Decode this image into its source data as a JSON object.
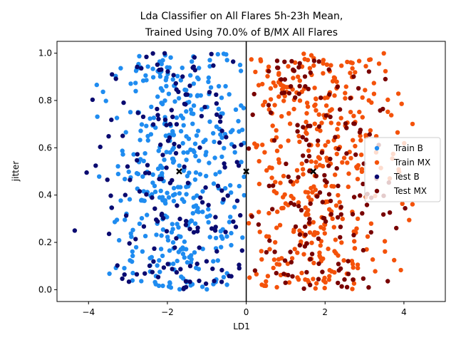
{
  "chart_data": {
    "type": "scatter",
    "title_line1": "Lda Classifier on All Flares 5h-23h Mean,",
    "title_line2": "Trained Using 70.0% of B/MX All Flares",
    "xlabel": "LD1",
    "ylabel": "jitter",
    "xlim": [
      -4.8,
      5.05
    ],
    "ylim": [
      -0.05,
      1.05
    ],
    "xticks": [
      -4,
      -2,
      0,
      2,
      4
    ],
    "yticks": [
      0.0,
      0.2,
      0.4,
      0.6,
      0.8,
      1.0
    ],
    "grid": false,
    "legend_position": "right",
    "decision_boundary_x": 0.0,
    "series": [
      {
        "name": "Train B",
        "color": "#1f8cf0",
        "count": 400,
        "distribution": {
          "x_center": -1.7,
          "x_spread": 1.0,
          "x_min": -3.8,
          "x_max": -0.05
        }
      },
      {
        "name": "Train MX",
        "color": "#f4520a",
        "count": 400,
        "distribution": {
          "x_center": 1.7,
          "x_spread": 1.0,
          "x_min": 0.05,
          "x_max": 4.6
        }
      },
      {
        "name": "Test B",
        "color": "#0a0a70",
        "count": 170,
        "distribution": {
          "x_center": -1.7,
          "x_spread": 1.0,
          "x_min": -4.35,
          "x_max": 0.0
        }
      },
      {
        "name": "Test MX",
        "color": "#780000",
        "count": 170,
        "distribution": {
          "x_center": 1.7,
          "x_spread": 1.0,
          "x_min": 0.05,
          "x_max": 4.6
        }
      }
    ],
    "outliers": [
      {
        "series": "Test B",
        "x": -4.35,
        "y": 0.25
      }
    ],
    "class_means": [
      {
        "x": -1.7,
        "y": 0.5
      },
      {
        "x": 0.0,
        "y": 0.5
      },
      {
        "x": 1.7,
        "y": 0.5
      }
    ]
  }
}
